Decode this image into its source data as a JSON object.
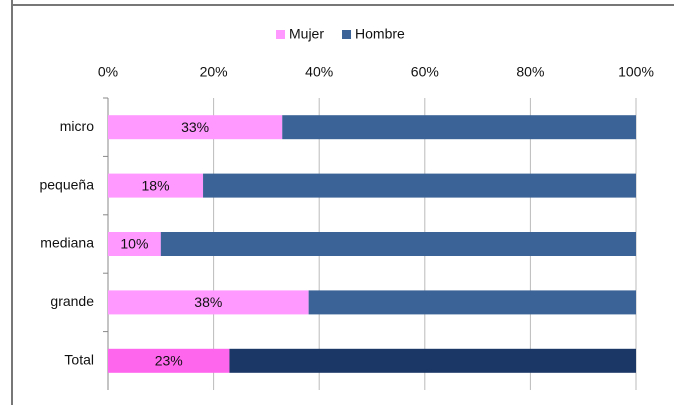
{
  "chart_data": {
    "type": "stacked_barh",
    "categories": [
      "micro",
      "pequeña",
      "mediana",
      "grande",
      "Total"
    ],
    "series": [
      {
        "name": "Mujer",
        "color": "#ff99ff",
        "colors": [
          "#ff99ff",
          "#ff99ff",
          "#ff99ff",
          "#ff99ff",
          "#ff66ee"
        ],
        "values": [
          33,
          18,
          10,
          38,
          23
        ],
        "value_labels": [
          "33%",
          "18%",
          "10%",
          "38%",
          "23%"
        ]
      },
      {
        "name": "Hombre",
        "color": "#3c6397",
        "colors": [
          "#3c6397",
          "#3c6397",
          "#3c6397",
          "#3c6397",
          "#1b3766"
        ],
        "values": [
          67,
          82,
          90,
          62,
          77
        ]
      }
    ],
    "xlim": [
      0,
      100
    ],
    "xticks": [
      {
        "value": 0,
        "label": "0%"
      },
      {
        "value": 20,
        "label": "20%"
      },
      {
        "value": 40,
        "label": "40%"
      },
      {
        "value": 60,
        "label": "60%"
      },
      {
        "value": 80,
        "label": "80%"
      },
      {
        "value": 100,
        "label": "100%"
      }
    ],
    "grid": true,
    "legend": "top"
  }
}
